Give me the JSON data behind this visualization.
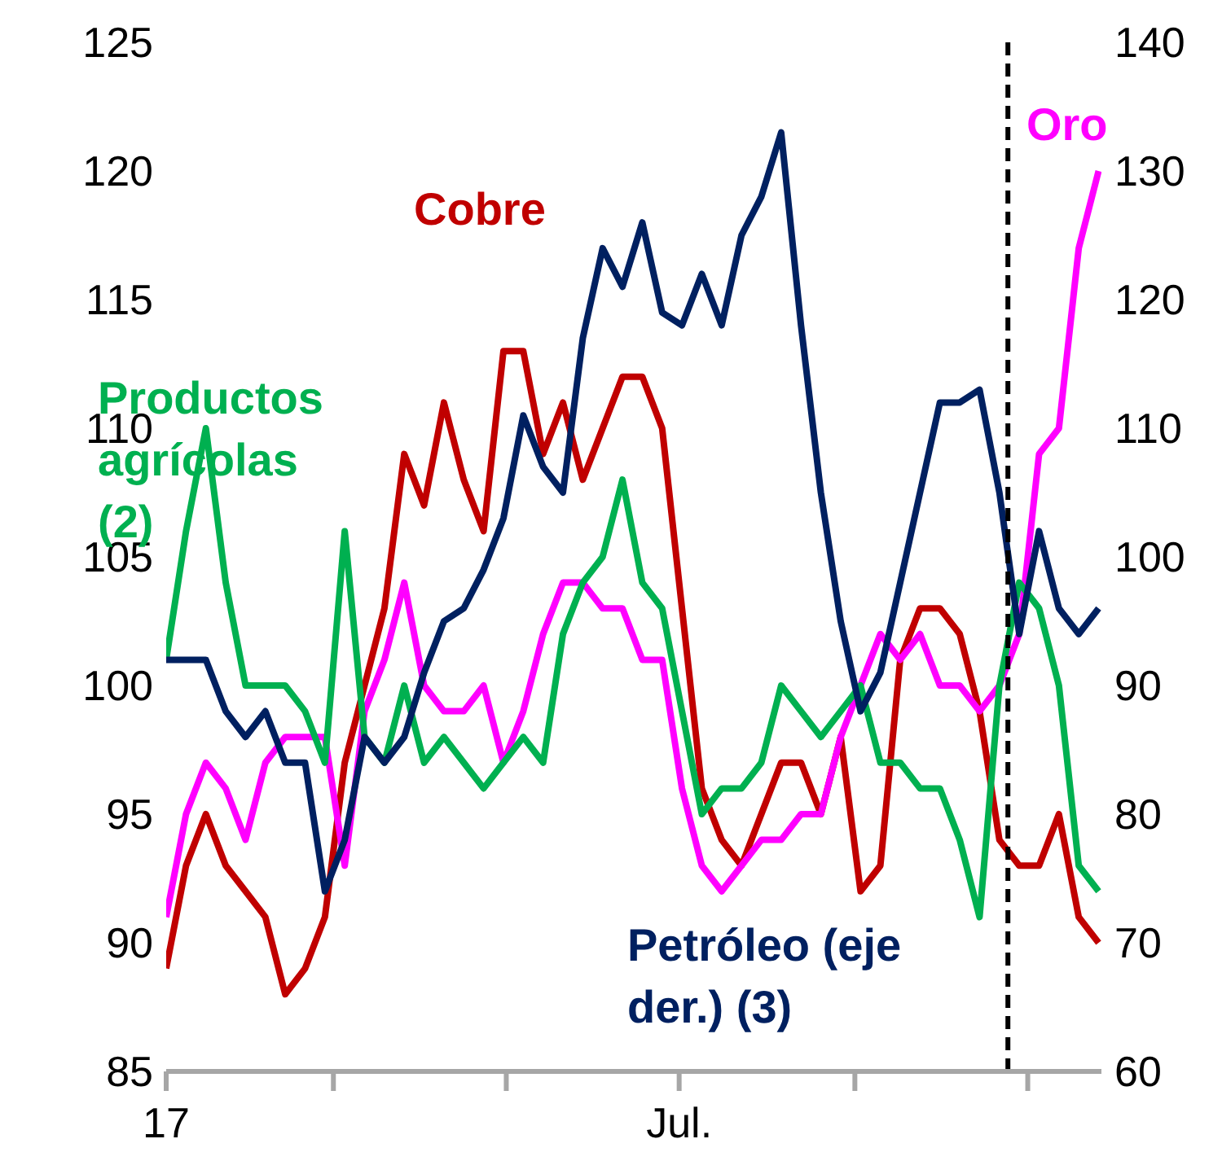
{
  "chart_data": {
    "type": "line",
    "x": [
      "2017-01-01",
      "2017-01-08",
      "2017-01-15",
      "2017-01-22",
      "2017-01-29",
      "2017-02-05",
      "2017-02-12",
      "2017-02-19",
      "2017-02-26",
      "2017-03-05",
      "2017-03-12",
      "2017-03-19",
      "2017-03-26",
      "2017-04-02",
      "2017-04-09",
      "2017-04-16",
      "2017-04-23",
      "2017-04-30",
      "2017-05-07",
      "2017-05-14",
      "2017-05-21",
      "2017-05-28",
      "2017-06-04",
      "2017-06-11",
      "2017-06-18",
      "2017-06-25",
      "2017-07-02",
      "2017-07-09",
      "2017-07-16",
      "2017-07-23",
      "2017-07-30",
      "2017-08-06",
      "2017-08-13",
      "2017-08-20",
      "2017-08-27",
      "2017-09-03",
      "2017-09-10",
      "2017-09-17",
      "2017-09-24",
      "2017-10-01",
      "2017-10-08",
      "2017-10-15",
      "2017-10-22",
      "2017-10-29",
      "2017-11-05",
      "2017-11-12",
      "2017-11-19",
      "2017-11-26"
    ],
    "series": [
      {
        "name": "Cobre",
        "color": "#c00000",
        "values": [
          89,
          93,
          95,
          93,
          92,
          91,
          88,
          89,
          91,
          97,
          100,
          103,
          109,
          107,
          111,
          108,
          106,
          113,
          113,
          109,
          111,
          108,
          110,
          112,
          112,
          110,
          103,
          96,
          94,
          93,
          95,
          97,
          97,
          95,
          98,
          92,
          93,
          101,
          103,
          103,
          102,
          99,
          94,
          93,
          93,
          95,
          91,
          90
        ]
      },
      {
        "name": "Oro",
        "color": "#ff00ff",
        "values": [
          91,
          95,
          97,
          96,
          94,
          97,
          98,
          98,
          98,
          93,
          99,
          101,
          104,
          100,
          99,
          99,
          100,
          97,
          99,
          102,
          104,
          104,
          103,
          103,
          101,
          101,
          96,
          93,
          92,
          93,
          94,
          94,
          95,
          95,
          98,
          100,
          102,
          101,
          102,
          100,
          100,
          99,
          100,
          102,
          109,
          110,
          117,
          120
        ]
      },
      {
        "name": "Productos agrícolas (2)",
        "color": "#00b050",
        "values": [
          101,
          106,
          110,
          104,
          100,
          100,
          100,
          99,
          97,
          106,
          98,
          97,
          100,
          97,
          98,
          97,
          96,
          97,
          98,
          97,
          102,
          104,
          105,
          108,
          104,
          103,
          99,
          95,
          96,
          96,
          97,
          100,
          99,
          98,
          99,
          100,
          97,
          97,
          96,
          96,
          94,
          91,
          100,
          104,
          103,
          100,
          93,
          92
        ]
      },
      {
        "name": "Petróleo (eje der.) (3)",
        "color": "#002060",
        "axis": "y2",
        "values": [
          92,
          92,
          92,
          88,
          86,
          88,
          84,
          84,
          74,
          78,
          86,
          84,
          86,
          91,
          95,
          96,
          99,
          103,
          111,
          107,
          105,
          117,
          124,
          121,
          126,
          119,
          118,
          122,
          118,
          125,
          128,
          133,
          118,
          105,
          95,
          88,
          91,
          98,
          105,
          112,
          112,
          113,
          105,
          94,
          102,
          96,
          94,
          96
        ]
      }
    ],
    "xlim": [
      "2017-01-01",
      "2017-11-27"
    ],
    "xticks": [
      {
        "value": "2017-01-01",
        "label": "17"
      },
      {
        "value": "2017-03-01",
        "label": null
      },
      {
        "value": "2017-05-01",
        "label": null
      },
      {
        "value": "2017-07-01",
        "label": "Jul."
      },
      {
        "value": "2017-09-01",
        "label": null
      },
      {
        "value": "2017-11-01",
        "label": null
      }
    ],
    "ylim": [
      85,
      125
    ],
    "yticks": [
      85,
      90,
      95,
      100,
      105,
      110,
      115,
      120,
      125
    ],
    "y2lim": [
      60,
      140
    ],
    "y2ticks": [
      60,
      70,
      80,
      90,
      100,
      110,
      120,
      130,
      140
    ],
    "ref_lines": [
      {
        "axis": "x",
        "value": "2017-10-25",
        "color": "#000000",
        "line_style": "dashed"
      }
    ]
  }
}
